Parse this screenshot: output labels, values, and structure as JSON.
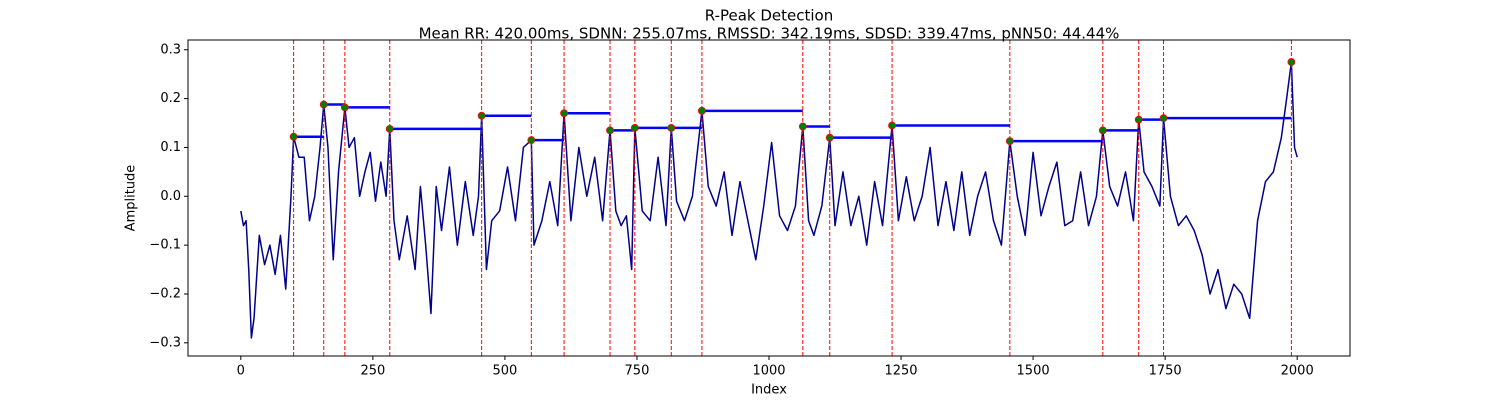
{
  "chart_data": {
    "type": "line",
    "title": "R-Peak Detection",
    "subtitle": "Mean RR: 420.00ms, SDNN: 255.07ms, RMSSD: 342.19ms, SDSD: 339.47ms, pNN50: 44.44%",
    "xlabel": "Index",
    "ylabel": "Amplitude",
    "xlim": [
      -100,
      2100
    ],
    "ylim": [
      -0.327,
      0.32
    ],
    "xticks": [
      0,
      250,
      500,
      750,
      1000,
      1250,
      1500,
      1750,
      2000
    ],
    "yticks": [
      {
        "value": -0.3,
        "label": "−0.3"
      },
      {
        "value": -0.2,
        "label": "−0.2"
      },
      {
        "value": -0.1,
        "label": "−0.1"
      },
      {
        "value": 0,
        "label": "0.0"
      },
      0.1,
      0.2,
      0.3
    ],
    "peak_line_color": "#ff0000",
    "rr_line_color": "#0000ff",
    "marker_color": "#008000",
    "series": [
      {
        "color": "#00008b",
        "x": [
          0,
          5,
          10,
          15,
          20,
          25,
          35,
          45,
          55,
          65,
          75,
          85,
          95,
          100,
          110,
          120,
          130,
          140,
          150,
          157,
          165,
          175,
          185,
          197,
          205,
          215,
          225,
          235,
          245,
          255,
          265,
          275,
          282,
          290,
          300,
          315,
          330,
          340,
          350,
          360,
          370,
          380,
          395,
          410,
          425,
          440,
          450,
          456,
          465,
          475,
          490,
          505,
          520,
          535,
          550,
          555,
          570,
          585,
          600,
          612,
          625,
          640,
          655,
          670,
          685,
          699,
          710,
          720,
          730,
          740,
          746,
          760,
          775,
          790,
          805,
          815,
          825,
          840,
          855,
          873,
          885,
          900,
          915,
          930,
          945,
          960,
          975,
          990,
          1005,
          1020,
          1035,
          1050,
          1064,
          1075,
          1085,
          1100,
          1115,
          1125,
          1140,
          1155,
          1170,
          1185,
          1200,
          1215,
          1233,
          1245,
          1260,
          1275,
          1290,
          1305,
          1320,
          1335,
          1350,
          1365,
          1380,
          1395,
          1410,
          1425,
          1440,
          1456,
          1470,
          1485,
          1500,
          1515,
          1530,
          1545,
          1560,
          1575,
          1590,
          1605,
          1620,
          1632,
          1645,
          1660,
          1675,
          1690,
          1700,
          1710,
          1725,
          1740,
          1747,
          1760,
          1775,
          1790,
          1805,
          1820,
          1835,
          1850,
          1865,
          1880,
          1895,
          1910,
          1925,
          1940,
          1955,
          1970,
          1980,
          1989,
          1995,
          2000
        ],
        "values": [
          -0.03,
          -0.06,
          -0.05,
          -0.15,
          -0.29,
          -0.25,
          -0.08,
          -0.14,
          -0.1,
          -0.16,
          -0.08,
          -0.19,
          0.0,
          0.122,
          0.08,
          0.08,
          -0.05,
          0.0,
          0.1,
          0.188,
          0.1,
          -0.13,
          0.05,
          0.182,
          0.1,
          0.12,
          0.0,
          0.05,
          0.09,
          -0.01,
          0.07,
          0.0,
          0.138,
          -0.05,
          -0.13,
          -0.04,
          -0.15,
          0.02,
          -0.1,
          -0.24,
          0.02,
          -0.07,
          0.06,
          -0.1,
          0.03,
          -0.08,
          0.0,
          0.165,
          -0.15,
          -0.05,
          -0.03,
          0.06,
          -0.05,
          0.1,
          0.115,
          -0.1,
          -0.05,
          0.03,
          -0.06,
          0.17,
          -0.05,
          0.1,
          0.0,
          0.08,
          -0.05,
          0.135,
          -0.03,
          -0.06,
          -0.04,
          -0.15,
          0.14,
          -0.03,
          -0.05,
          0.08,
          -0.06,
          0.14,
          -0.01,
          -0.05,
          0.0,
          0.175,
          0.02,
          -0.02,
          0.05,
          -0.08,
          0.03,
          -0.05,
          -0.13,
          -0.02,
          0.11,
          -0.04,
          -0.07,
          -0.02,
          0.143,
          -0.05,
          -0.08,
          -0.02,
          0.12,
          -0.06,
          0.05,
          -0.06,
          0.0,
          -0.1,
          0.03,
          -0.06,
          0.145,
          -0.05,
          0.04,
          -0.05,
          0.0,
          0.1,
          -0.06,
          0.03,
          -0.07,
          0.05,
          -0.08,
          0.0,
          0.05,
          -0.05,
          -0.1,
          0.113,
          0.0,
          -0.08,
          0.09,
          -0.04,
          0.02,
          0.07,
          -0.06,
          -0.05,
          0.05,
          -0.06,
          0.0,
          0.135,
          0.02,
          -0.02,
          0.05,
          -0.05,
          0.157,
          0.05,
          0.02,
          -0.02,
          0.16,
          0.0,
          -0.06,
          -0.04,
          -0.07,
          -0.12,
          -0.2,
          -0.15,
          -0.23,
          -0.18,
          -0.2,
          -0.25,
          -0.05,
          0.03,
          0.05,
          0.12,
          0.2,
          0.275,
          0.1,
          0.08
        ]
      },
      {
        "x": [
          100,
          157,
          197,
          282,
          456,
          550,
          612,
          699,
          746,
          815,
          873,
          1064,
          1115,
          1233,
          1456,
          1632,
          1700,
          1747,
          1989
        ],
        "values": [
          0.122,
          0.188,
          0.182,
          0.138,
          0.165,
          0.115,
          0.17,
          0.135,
          0.14,
          0.14,
          0.175,
          0.143,
          0.12,
          0.145,
          0.113,
          0.135,
          0.157,
          0.16,
          0.275
        ]
      }
    ]
  }
}
